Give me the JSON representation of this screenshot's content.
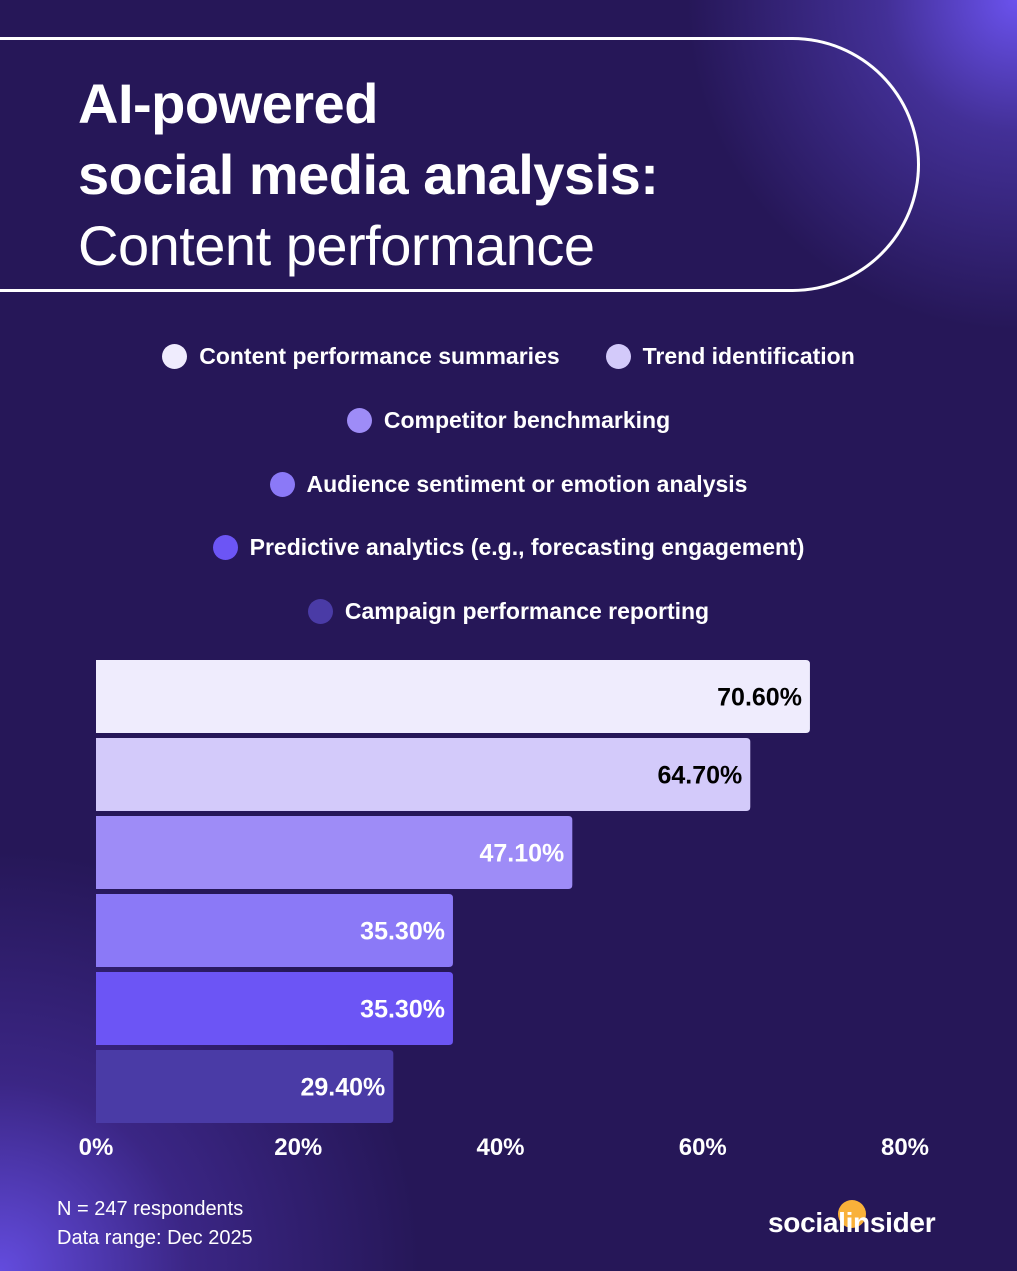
{
  "title": {
    "line1": "AI-powered",
    "line2": "social media analysis:",
    "line3": "Content performance"
  },
  "chart_data": {
    "type": "bar",
    "orientation": "horizontal",
    "categories": [
      "Content performance summaries",
      "Trend identification",
      "Competitor benchmarking",
      "Audience sentiment or emotion analysis",
      "Predictive analytics (e.g., forecasting engagement)",
      "Campaign performance reporting"
    ],
    "values": [
      70.6,
      64.7,
      47.1,
      35.3,
      35.3,
      29.4
    ],
    "data_labels": [
      "70.60%",
      "64.70%",
      "47.10%",
      "35.30%",
      "35.30%",
      "29.40%"
    ],
    "colors": [
      "#efecfd",
      "#d3cafa",
      "#9e8cf7",
      "#8b79f7",
      "#6c55f5",
      "#4a3ba6"
    ],
    "label_colors": [
      "#000000",
      "#000000",
      "#ffffff",
      "#ffffff",
      "#ffffff",
      "#ffffff"
    ],
    "xlim": [
      0,
      80
    ],
    "x_ticks": [
      "0%",
      "20%",
      "40%",
      "60%",
      "80%"
    ],
    "grid": false,
    "legend_placement": "top"
  },
  "footer": {
    "sample": "N = 247 respondents",
    "range": "Data range: Dec 2025"
  },
  "logo": "socialinsider",
  "colors": {
    "background": "#261758",
    "accent": "#6c55f5",
    "logo_dot": "#f9b13a"
  }
}
